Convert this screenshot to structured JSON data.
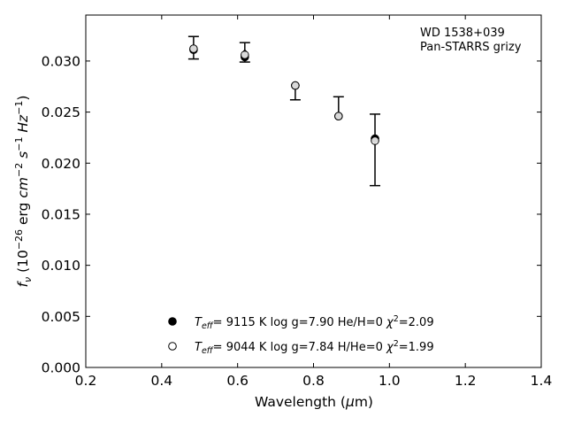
{
  "chart_data": {
    "type": "scatter",
    "annotation_lines": [
      "WD 1538+039",
      "Pan-STARRS grizy"
    ],
    "annotation_placement": "top-right",
    "xlabel": "Wavelength (μm)",
    "ylabel": "f_ν (10^-26 erg cm^-2 s^-1 Hz^-1)",
    "xlim": [
      0.2,
      1.4
    ],
    "ylim": [
      0.0,
      0.0345
    ],
    "x_ticks": [
      0.2,
      0.4,
      0.6,
      0.8,
      1.0,
      1.2,
      1.4
    ],
    "x_tick_labels": [
      "0.2",
      "0.4",
      "0.6",
      "0.8",
      "1.0",
      "1.2",
      "1.4"
    ],
    "y_ticks": [
      0.0,
      0.005,
      0.01,
      0.015,
      0.02,
      0.025,
      0.03
    ],
    "y_tick_labels": [
      "0.000",
      "0.005",
      "0.010",
      "0.015",
      "0.020",
      "0.025",
      "0.030"
    ],
    "grid": false,
    "tick_direction": "in",
    "observed": {
      "x": [
        0.484,
        0.619,
        0.752,
        0.866,
        0.962
      ],
      "y": [
        0.0313,
        0.0309,
        0.0277,
        0.0247,
        0.0223
      ],
      "err_low": [
        0.0011,
        0.001,
        0.0015,
        0.0,
        0.0045
      ],
      "err_high": [
        0.0011,
        0.0009,
        0.0,
        0.0018,
        0.0025
      ]
    },
    "series": [
      {
        "name": "Teff= 9115 K log g=7.90 He/H=0 χ2=2.09",
        "marker": "filled-circle",
        "x": [
          0.484,
          0.619,
          0.752,
          0.866,
          0.962
        ],
        "y": [
          0.0311,
          0.0304,
          0.0276,
          0.0246,
          0.0224
        ]
      },
      {
        "name": "Teff= 9044 K log g=7.84 H/He=0 χ2=1.99",
        "marker": "open-circle",
        "x": [
          0.484,
          0.619,
          0.752,
          0.866,
          0.962
        ],
        "y": [
          0.0312,
          0.0306,
          0.0276,
          0.0246,
          0.0222
        ]
      }
    ],
    "legend": {
      "placement": "bottom-center",
      "entries": [
        {
          "teff": "9115 K",
          "logg": "log g=7.90",
          "comp": "He/H=0",
          "chi2": "=2.09",
          "marker": "filled-circle"
        },
        {
          "teff": "9044 K",
          "logg": "log g=7.84",
          "comp": "H/He=0",
          "chi2": "=1.99",
          "marker": "open-circle"
        }
      ]
    },
    "colors": {
      "marker": "#000000",
      "axis": "#000000",
      "background": "#ffffff"
    }
  }
}
